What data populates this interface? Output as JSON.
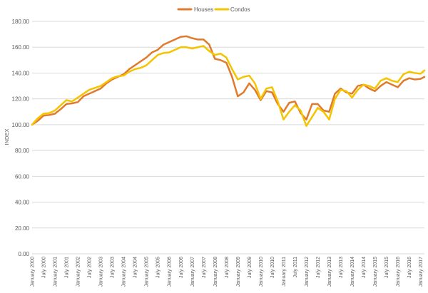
{
  "chart_data": {
    "type": "line",
    "title": "",
    "xlabel": "",
    "ylabel": "INDEX",
    "ylim": [
      0,
      180
    ],
    "y_ticks": [
      "0.00",
      "20.00",
      "40.00",
      "60.00",
      "80.00",
      "100.00",
      "120.00",
      "140.00",
      "160.00",
      "180.00"
    ],
    "grid": true,
    "legend_position": "top-center",
    "x_start": "January 2000",
    "x_end": "January 2017",
    "x_tick_labels": [
      "January 2000",
      "July 2000",
      "January 2001",
      "July 2001",
      "January 2002",
      "July 2002",
      "January 2003",
      "July 2003",
      "January 2004",
      "July 2004",
      "January 2005",
      "July 2005",
      "January 2006",
      "July 2006",
      "January 2007",
      "July 2007",
      "January 2008",
      "July 2008",
      "January 2009",
      "July 2009",
      "January 2010",
      "July 2010",
      "January 2011",
      "July 2011",
      "January 2012",
      "July 2012",
      "January 2013",
      "July 2013",
      "January 2014",
      "July 2014",
      "January 2015",
      "July 2015",
      "January 2016",
      "July 2016",
      "January 2017"
    ],
    "x": [
      "2000-01",
      "2000-04",
      "2000-07",
      "2000-10",
      "2001-01",
      "2001-04",
      "2001-07",
      "2001-10",
      "2002-01",
      "2002-04",
      "2002-07",
      "2002-10",
      "2003-01",
      "2003-04",
      "2003-07",
      "2003-10",
      "2004-01",
      "2004-04",
      "2004-07",
      "2004-10",
      "2005-01",
      "2005-04",
      "2005-07",
      "2005-10",
      "2006-01",
      "2006-04",
      "2006-07",
      "2006-10",
      "2007-01",
      "2007-04",
      "2007-07",
      "2007-10",
      "2008-01",
      "2008-04",
      "2008-07",
      "2008-10",
      "2009-01",
      "2009-04",
      "2009-07",
      "2009-10",
      "2010-01",
      "2010-04",
      "2010-07",
      "2010-10",
      "2011-01",
      "2011-04",
      "2011-07",
      "2011-10",
      "2012-01",
      "2012-04",
      "2012-07",
      "2012-10",
      "2013-01",
      "2013-04",
      "2013-07",
      "2013-10",
      "2014-01",
      "2014-04",
      "2014-07",
      "2014-10",
      "2015-01",
      "2015-04",
      "2015-07",
      "2015-10",
      "2016-01",
      "2016-04",
      "2016-07",
      "2016-10",
      "2017-01",
      "2017-03"
    ],
    "series": [
      {
        "name": "Houses",
        "color": "#e07b2e",
        "values": [
          100,
          103,
          107,
          107.5,
          108.5,
          112,
          116,
          116.5,
          117.5,
          122,
          124,
          126,
          128,
          132,
          135,
          137,
          139,
          143,
          146,
          149,
          152,
          156,
          158,
          162,
          164,
          166,
          168,
          168.5,
          167,
          166,
          166,
          162,
          151,
          150,
          148,
          137,
          122,
          125,
          132,
          127,
          119,
          126,
          125,
          116,
          110,
          117,
          118,
          109,
          104,
          116,
          116,
          111,
          110,
          124,
          128,
          125,
          124,
          130,
          131,
          128,
          126,
          130,
          133,
          131,
          129,
          134,
          136,
          135,
          135.5,
          137
        ]
      },
      {
        "name": "Condos",
        "color": "#f5c400",
        "values": [
          100,
          105,
          108.5,
          109,
          111,
          115,
          119,
          118,
          121,
          124,
          127,
          128.5,
          130,
          133,
          136,
          137.5,
          138,
          141,
          143,
          144,
          146,
          150,
          154,
          155.5,
          156,
          158,
          160,
          160,
          159,
          160,
          161,
          157,
          154,
          155,
          152,
          143,
          135,
          137,
          138,
          132,
          120,
          128,
          129,
          118,
          104,
          110,
          115,
          111,
          99,
          106,
          113,
          110,
          104,
          120,
          127,
          126,
          121,
          127,
          131,
          130,
          128,
          134,
          136,
          134,
          133,
          139,
          141,
          140,
          139.5,
          142
        ]
      }
    ]
  }
}
